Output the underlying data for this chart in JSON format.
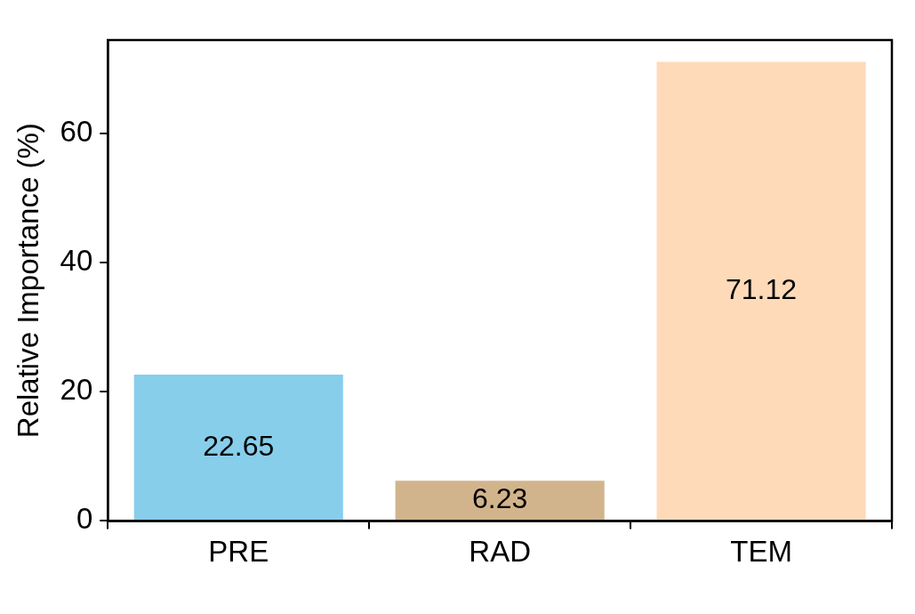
{
  "chart_data": {
    "type": "bar",
    "ylabel": "Relative Importance (%)",
    "categories": [
      "PRE",
      "RAD",
      "TEM"
    ],
    "values": [
      22.65,
      6.23,
      71.12
    ],
    "colors": [
      "#87ceeb",
      "#d2b48c",
      "#ffdab9"
    ],
    "ylim": [
      0,
      74.5
    ],
    "yticks": [
      0,
      20,
      40,
      60
    ],
    "data_labels": true
  }
}
